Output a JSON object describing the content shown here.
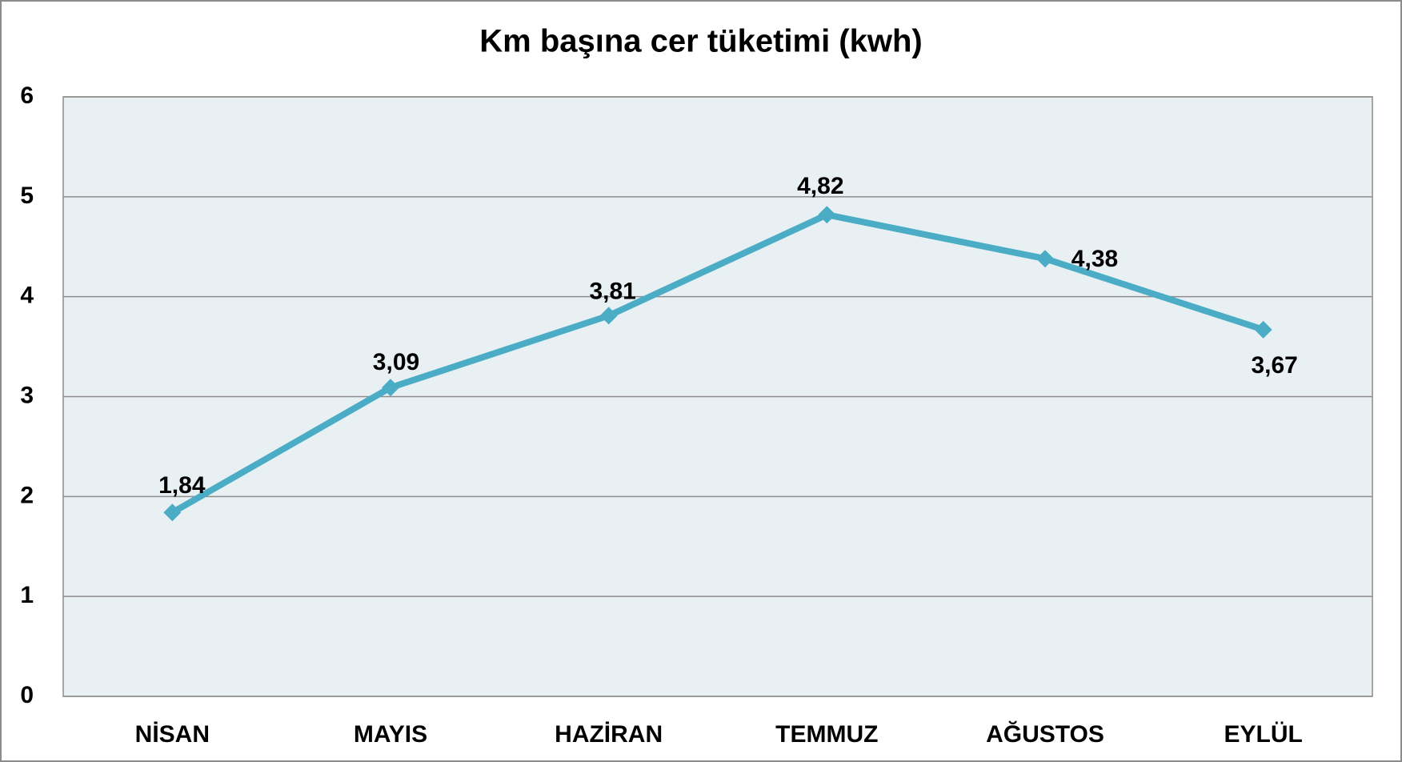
{
  "chart_data": {
    "type": "line",
    "title": "Km başına cer tüketimi (kwh)",
    "categories": [
      "NİSAN",
      "MAYIS",
      "HAZİRAN",
      "TEMMUZ",
      "AĞUSTOS",
      "EYLÜL"
    ],
    "series": [
      {
        "name": "Km başına cer tüketimi",
        "color": "#4bacc6",
        "values": [
          1.84,
          3.09,
          3.81,
          4.82,
          4.38,
          3.67
        ],
        "value_labels": [
          "1,84",
          "3,09",
          "3,81",
          "4,82",
          "4,38",
          "3,67"
        ]
      }
    ],
    "ylim": [
      0,
      6
    ],
    "yticks": [
      0,
      1,
      2,
      3,
      4,
      5,
      6
    ],
    "grid": true
  }
}
